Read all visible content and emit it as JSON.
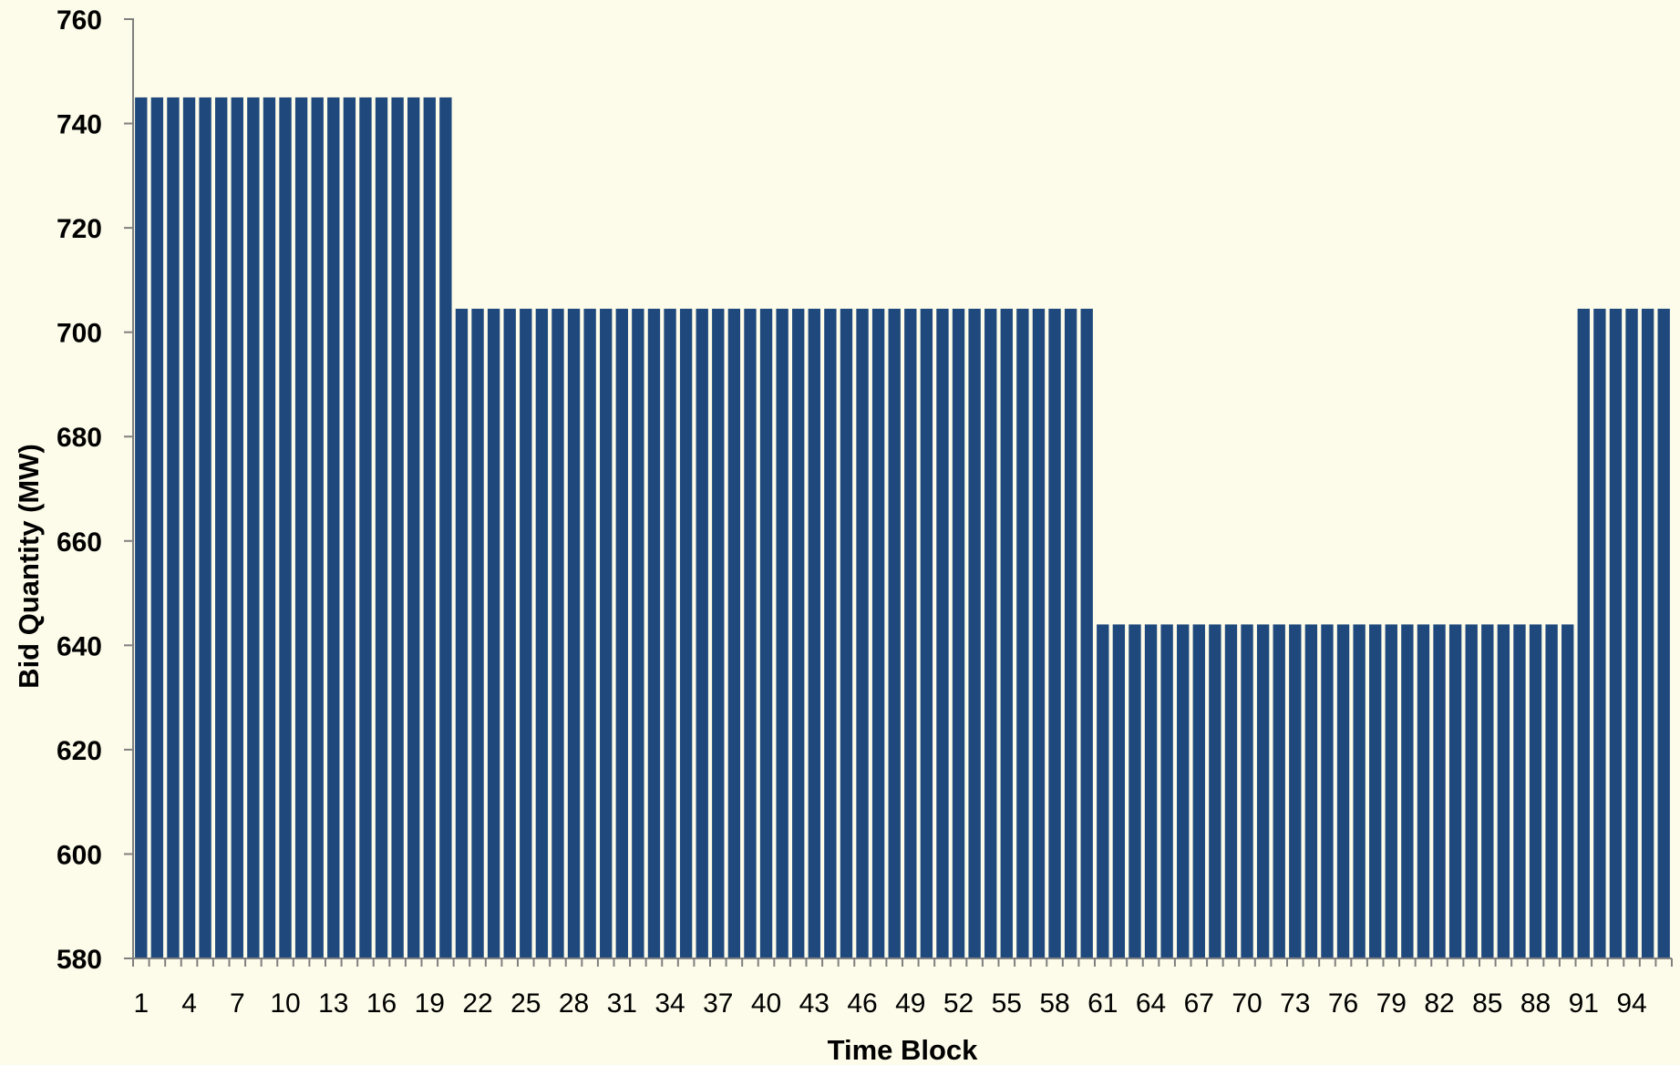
{
  "chart_data": {
    "type": "bar",
    "title": "",
    "xlabel": "Time Block",
    "ylabel": "Bid Quantity (MW)",
    "ylim": [
      580,
      760
    ],
    "yticks": [
      580,
      600,
      620,
      640,
      660,
      680,
      700,
      720,
      740,
      760
    ],
    "xtick_labels": [
      "1",
      "4",
      "7",
      "10",
      "13",
      "16",
      "19",
      "22",
      "25",
      "28",
      "31",
      "34",
      "37",
      "40",
      "43",
      "46",
      "49",
      "52",
      "55",
      "58",
      "61",
      "64",
      "67",
      "70",
      "73",
      "76",
      "79",
      "82",
      "85",
      "88",
      "91",
      "94"
    ],
    "categories": [
      1,
      2,
      3,
      4,
      5,
      6,
      7,
      8,
      9,
      10,
      11,
      12,
      13,
      14,
      15,
      16,
      17,
      18,
      19,
      20,
      21,
      22,
      23,
      24,
      25,
      26,
      27,
      28,
      29,
      30,
      31,
      32,
      33,
      34,
      35,
      36,
      37,
      38,
      39,
      40,
      41,
      42,
      43,
      44,
      45,
      46,
      47,
      48,
      49,
      50,
      51,
      52,
      53,
      54,
      55,
      56,
      57,
      58,
      59,
      60,
      61,
      62,
      63,
      64,
      65,
      66,
      67,
      68,
      69,
      70,
      71,
      72,
      73,
      74,
      75,
      76,
      77,
      78,
      79,
      80,
      81,
      82,
      83,
      84,
      85,
      86,
      87,
      88,
      89,
      90,
      91,
      92,
      93,
      94,
      95,
      96
    ],
    "values": [
      745,
      745,
      745,
      745,
      745,
      745,
      745,
      745,
      745,
      745,
      745,
      745,
      745,
      745,
      745,
      745,
      745,
      745,
      745,
      745,
      704.5,
      704.5,
      704.5,
      704.5,
      704.5,
      704.5,
      704.5,
      704.5,
      704.5,
      704.5,
      704.5,
      704.5,
      704.5,
      704.5,
      704.5,
      704.5,
      704.5,
      704.5,
      704.5,
      704.5,
      704.5,
      704.5,
      704.5,
      704.5,
      704.5,
      704.5,
      704.5,
      704.5,
      704.5,
      704.5,
      704.5,
      704.5,
      704.5,
      704.5,
      704.5,
      704.5,
      704.5,
      704.5,
      704.5,
      704.5,
      644,
      644,
      644,
      644,
      644,
      644,
      644,
      644,
      644,
      644,
      644,
      644,
      644,
      644,
      644,
      644,
      644,
      644,
      644,
      644,
      644,
      644,
      644,
      644,
      644,
      644,
      644,
      644,
      644,
      644,
      704.5,
      704.5,
      704.5,
      704.5,
      704.5,
      704.5
    ],
    "bar_color": "#1f497d",
    "axis_color": "#808080",
    "background": "#fdfbe9",
    "grid": false,
    "legend": "none"
  }
}
